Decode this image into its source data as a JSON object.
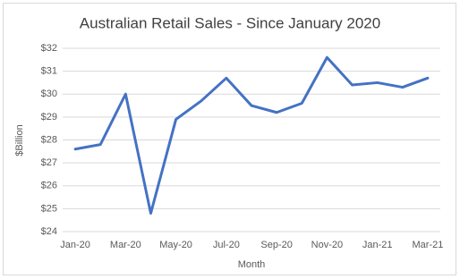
{
  "chart_data": {
    "type": "line",
    "title": "Australian Retail Sales - Since January 2020",
    "x_label": "Month",
    "y_label": "$Billion",
    "categories": [
      "Jan-20",
      null,
      "Mar-20",
      null,
      "May-20",
      null,
      "Jul-20",
      null,
      "Sep-20",
      null,
      "Nov-20",
      null,
      "Jan-21",
      null,
      "Mar-21"
    ],
    "series": [
      {
        "name": "Retail Sales",
        "color": "#4472c4",
        "values": [
          27.6,
          27.8,
          30.0,
          24.8,
          28.9,
          29.7,
          30.7,
          29.5,
          29.2,
          29.6,
          31.6,
          30.4,
          30.5,
          30.3,
          30.7
        ]
      }
    ],
    "ylim": [
      24,
      32
    ],
    "yticks": [
      {
        "value": 24,
        "label": "$24"
      },
      {
        "value": 25,
        "label": "$25"
      },
      {
        "value": 26,
        "label": "$26"
      },
      {
        "value": 27,
        "label": "$27"
      },
      {
        "value": 28,
        "label": "$28"
      },
      {
        "value": 29,
        "label": "$29"
      },
      {
        "value": 30,
        "label": "$30"
      },
      {
        "value": 31,
        "label": "$31"
      },
      {
        "value": 32,
        "label": "$32"
      }
    ],
    "grid": true
  }
}
